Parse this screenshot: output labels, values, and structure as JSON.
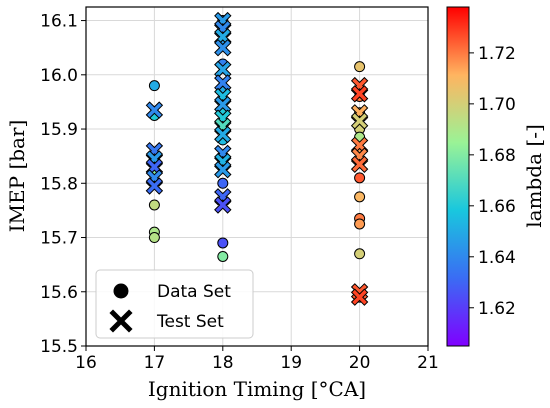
{
  "chart_data": {
    "type": "scatter",
    "xlabel": "Ignition Timing [°CA]",
    "ylabel": "IMEP [bar]",
    "xlim": [
      16,
      21
    ],
    "ylim": [
      15.5,
      16.125
    ],
    "xticks": [
      "16",
      "17",
      "18",
      "19",
      "20",
      "21"
    ],
    "yticks": [
      "15.5",
      "15.6",
      "15.7",
      "15.8",
      "15.9",
      "16.0",
      "16.1"
    ],
    "grid": true,
    "legend": {
      "placement": "bottom-left",
      "entries": [
        "Data Set",
        "Test Set"
      ]
    },
    "colorbar": {
      "label": "lambda [-]",
      "range": [
        1.605,
        1.738
      ],
      "ticks": [
        "1.62",
        "1.64",
        "1.66",
        "1.68",
        "1.70",
        "1.72"
      ],
      "colormap": "rainbow"
    },
    "series": [
      {
        "name": "Data Set",
        "marker": "circle",
        "points": [
          {
            "x": 17,
            "y": 15.98,
            "lambda": 1.65
          },
          {
            "x": 17,
            "y": 15.925,
            "lambda": 1.66
          },
          {
            "x": 17,
            "y": 15.84,
            "lambda": 1.64
          },
          {
            "x": 17,
            "y": 15.82,
            "lambda": 1.68
          },
          {
            "x": 17,
            "y": 15.76,
            "lambda": 1.695
          },
          {
            "x": 17,
            "y": 15.71,
            "lambda": 1.69
          },
          {
            "x": 17,
            "y": 15.7,
            "lambda": 1.692
          },
          {
            "x": 18,
            "y": 16.1,
            "lambda": 1.64
          },
          {
            "x": 18,
            "y": 16.06,
            "lambda": 1.645
          },
          {
            "x": 18,
            "y": 16.02,
            "lambda": 1.638
          },
          {
            "x": 18,
            "y": 15.97,
            "lambda": 1.65
          },
          {
            "x": 18,
            "y": 15.93,
            "lambda": 1.66
          },
          {
            "x": 18,
            "y": 15.9,
            "lambda": 1.69
          },
          {
            "x": 18,
            "y": 15.88,
            "lambda": 1.655
          },
          {
            "x": 18,
            "y": 15.85,
            "lambda": 1.645
          },
          {
            "x": 18,
            "y": 15.83,
            "lambda": 1.65
          },
          {
            "x": 18,
            "y": 15.8,
            "lambda": 1.63
          },
          {
            "x": 18,
            "y": 15.69,
            "lambda": 1.625
          },
          {
            "x": 18,
            "y": 15.665,
            "lambda": 1.68
          },
          {
            "x": 20,
            "y": 16.015,
            "lambda": 1.705
          },
          {
            "x": 20,
            "y": 15.96,
            "lambda": 1.72
          },
          {
            "x": 20,
            "y": 15.93,
            "lambda": 1.71
          },
          {
            "x": 20,
            "y": 15.9,
            "lambda": 1.7
          },
          {
            "x": 20,
            "y": 15.885,
            "lambda": 1.69
          },
          {
            "x": 20,
            "y": 15.86,
            "lambda": 1.715
          },
          {
            "x": 20,
            "y": 15.84,
            "lambda": 1.7
          },
          {
            "x": 20,
            "y": 15.81,
            "lambda": 1.725
          },
          {
            "x": 20,
            "y": 15.775,
            "lambda": 1.71
          },
          {
            "x": 20,
            "y": 15.735,
            "lambda": 1.72
          },
          {
            "x": 20,
            "y": 15.725,
            "lambda": 1.715
          },
          {
            "x": 20,
            "y": 15.67,
            "lambda": 1.7
          },
          {
            "x": 20,
            "y": 15.59,
            "lambda": 1.725
          }
        ]
      },
      {
        "name": "Test Set",
        "marker": "x",
        "points": [
          {
            "x": 17,
            "y": 15.935,
            "lambda": 1.64
          },
          {
            "x": 17,
            "y": 15.86,
            "lambda": 1.635
          },
          {
            "x": 17,
            "y": 15.845,
            "lambda": 1.645
          },
          {
            "x": 17,
            "y": 15.83,
            "lambda": 1.63
          },
          {
            "x": 17,
            "y": 15.81,
            "lambda": 1.64
          },
          {
            "x": 17,
            "y": 15.795,
            "lambda": 1.632
          },
          {
            "x": 18,
            "y": 16.1,
            "lambda": 1.645
          },
          {
            "x": 18,
            "y": 16.085,
            "lambda": 1.64
          },
          {
            "x": 18,
            "y": 16.07,
            "lambda": 1.65
          },
          {
            "x": 18,
            "y": 16.05,
            "lambda": 1.642
          },
          {
            "x": 18,
            "y": 16.01,
            "lambda": 1.648
          },
          {
            "x": 18,
            "y": 15.985,
            "lambda": 1.638
          },
          {
            "x": 18,
            "y": 15.96,
            "lambda": 1.655
          },
          {
            "x": 18,
            "y": 15.945,
            "lambda": 1.645
          },
          {
            "x": 18,
            "y": 15.92,
            "lambda": 1.66
          },
          {
            "x": 18,
            "y": 15.905,
            "lambda": 1.67
          },
          {
            "x": 18,
            "y": 15.89,
            "lambda": 1.65
          },
          {
            "x": 18,
            "y": 15.855,
            "lambda": 1.64
          },
          {
            "x": 18,
            "y": 15.84,
            "lambda": 1.652
          },
          {
            "x": 18,
            "y": 15.825,
            "lambda": 1.645
          },
          {
            "x": 18,
            "y": 15.775,
            "lambda": 1.63
          },
          {
            "x": 18,
            "y": 15.76,
            "lambda": 1.625
          },
          {
            "x": 20,
            "y": 15.98,
            "lambda": 1.725
          },
          {
            "x": 20,
            "y": 15.965,
            "lambda": 1.728
          },
          {
            "x": 20,
            "y": 15.93,
            "lambda": 1.712
          },
          {
            "x": 20,
            "y": 15.915,
            "lambda": 1.7
          },
          {
            "x": 20,
            "y": 15.87,
            "lambda": 1.72
          },
          {
            "x": 20,
            "y": 15.85,
            "lambda": 1.718
          },
          {
            "x": 20,
            "y": 15.835,
            "lambda": 1.722
          },
          {
            "x": 20,
            "y": 15.6,
            "lambda": 1.725
          },
          {
            "x": 20,
            "y": 15.59,
            "lambda": 1.728
          }
        ]
      }
    ]
  }
}
